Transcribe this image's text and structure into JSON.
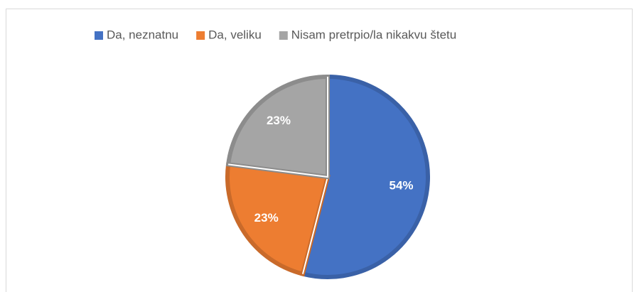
{
  "chart_data": {
    "type": "pie",
    "categories": [
      "Da, neznatnu",
      "Da, veliku",
      "Nisam pretrpio/la nikakvu štetu"
    ],
    "values": [
      54,
      23,
      23
    ],
    "value_labels": [
      "54%",
      "23%",
      "23%"
    ],
    "colors": [
      "#4472c4",
      "#ed7d31",
      "#a5a5a5"
    ],
    "legend": "top"
  }
}
